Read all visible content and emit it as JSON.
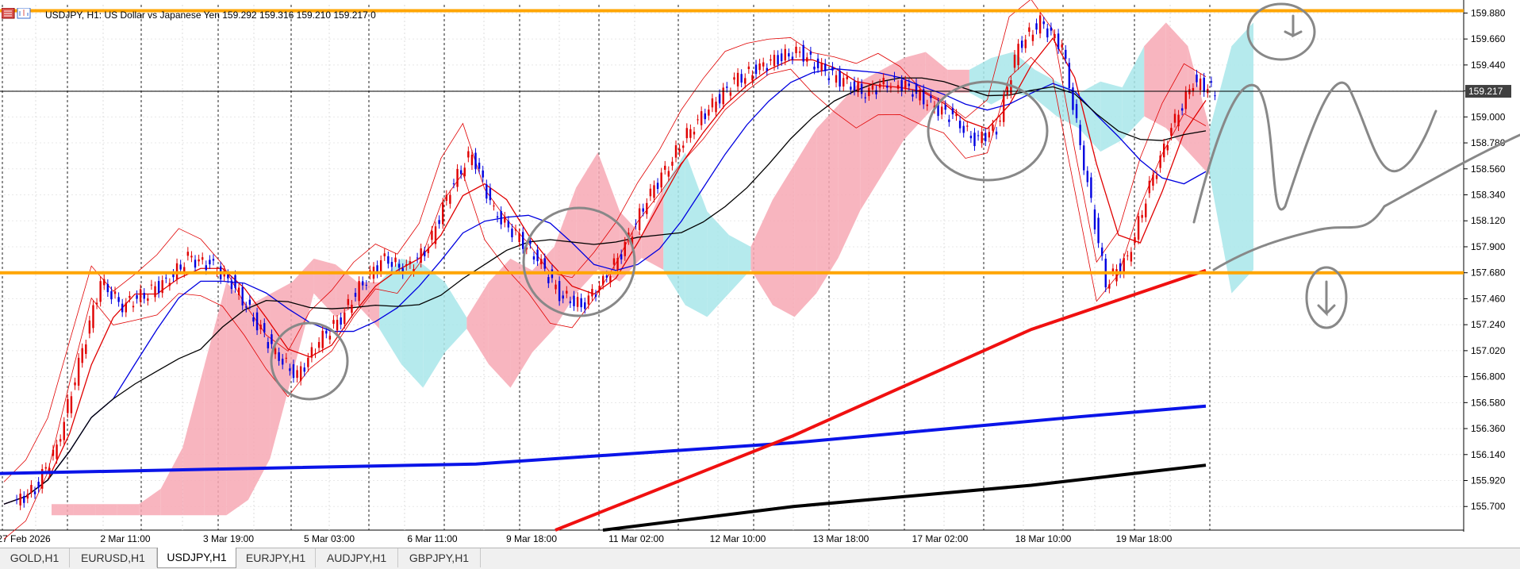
{
  "header": {
    "title": "USDJPY, H1:  US Dollar vs Japanese Yen  159.292 159.316 159.210 159.217  0"
  },
  "current_price": "159.217",
  "chart_data": {
    "type": "line",
    "title": "USDJPY, H1:  US Dollar vs Japanese Yen",
    "ylim": [
      155.5,
      159.95
    ],
    "y_ticks": [
      "159.880",
      "159.660",
      "159.440",
      "159.220",
      "159.000",
      "158.780",
      "158.560",
      "158.340",
      "158.120",
      "157.900",
      "157.680",
      "157.460",
      "157.240",
      "157.020",
      "156.800",
      "156.580",
      "156.360",
      "156.140",
      "155.920",
      "155.700"
    ],
    "x_ticks": [
      "27 Feb 2026",
      "2 Mar 11:00",
      "3 Mar 19:00",
      "5 Mar 03:00",
      "6 Mar 11:00",
      "9 Mar 18:00",
      "11 Mar 02:00",
      "12 Mar 10:00",
      "13 Mar 18:00",
      "17 Mar 02:00",
      "18 Mar 10:00",
      "19 Mar 18:00"
    ],
    "horizontal_levels": [
      159.9,
      157.68
    ],
    "last_price": 159.217,
    "series": [
      {
        "values": [
          155.72,
          155.85,
          156.2,
          156.9,
          157.6,
          157.4,
          157.5,
          157.6,
          157.8,
          157.75,
          157.6,
          157.3,
          157.0,
          156.8,
          157.1,
          157.3,
          157.6,
          157.8,
          157.7,
          157.9,
          158.4,
          158.7,
          158.2,
          158.0,
          157.8,
          157.5,
          157.4,
          157.6,
          157.9,
          158.3,
          158.6,
          158.9,
          159.1,
          159.3,
          159.4,
          159.5,
          159.55,
          159.4,
          159.3,
          159.2,
          159.3,
          159.25,
          159.1,
          159.0,
          158.8,
          158.9,
          159.6,
          159.8,
          159.6,
          158.6,
          157.6,
          157.8,
          158.4,
          158.9,
          159.3,
          159.22
        ]
      }
    ]
  },
  "tabs": [
    {
      "label": "GOLD,H1"
    },
    {
      "label": "EURUSD,H1"
    },
    {
      "label": "USDJPY,H1"
    },
    {
      "label": "EURJPY,H1"
    },
    {
      "label": "AUDJPY,H1"
    },
    {
      "label": "GBPJPY,H1"
    }
  ],
  "colors": {
    "bull_candle": "#e00000",
    "bear_candle": "#0000e0",
    "level_line": "#ffa500",
    "cloud_up": "#f7a8b4",
    "cloud_down": "#a8e6ea",
    "bollinger": "#e00000",
    "price_label_bg": "#404040"
  },
  "icons": {
    "header": "chart-menu-icon"
  }
}
